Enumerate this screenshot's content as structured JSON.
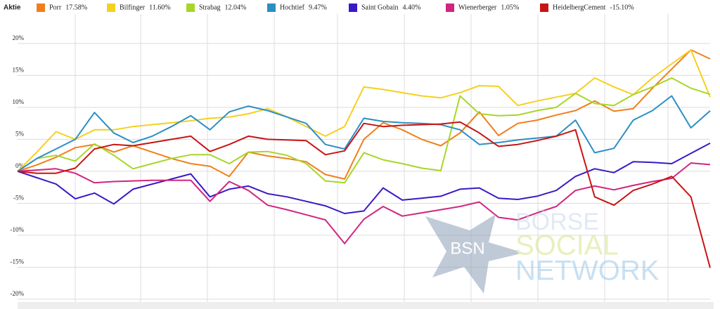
{
  "chart_data": {
    "type": "line",
    "legend_title": "Aktie",
    "categories": [
      null,
      null,
      null,
      null,
      null,
      null,
      null,
      null,
      null,
      null,
      null,
      null,
      null,
      null,
      null,
      null,
      null,
      null,
      null,
      null,
      null,
      null,
      null,
      null,
      null,
      null,
      null,
      null,
      null,
      null,
      null,
      null,
      null,
      null,
      null,
      null,
      null
    ],
    "ylim": [
      -20,
      24.6
    ],
    "yticks": [
      {
        "value": -20,
        "label": "-20%"
      },
      {
        "value": -15,
        "label": "-15%"
      },
      {
        "value": -10,
        "label": "-10%"
      },
      {
        "value": -5,
        "label": "-5%"
      },
      {
        "value": 0,
        "label": "0%"
      },
      {
        "value": 5,
        "label": "5%"
      },
      {
        "value": 10,
        "label": "10%"
      },
      {
        "value": 15,
        "label": "15%"
      },
      {
        "value": 20,
        "label": "20%"
      }
    ],
    "grid": true,
    "series": [
      {
        "name": "Porr",
        "change_label": "17.58%",
        "color": "#f07f1b",
        "values": [
          0,
          1,
          2.2,
          3.7,
          4.2,
          3,
          4,
          3,
          2,
          1.2,
          0.8,
          -0.8,
          3,
          2.4,
          2,
          1.5,
          -0.5,
          -1.2,
          5,
          7.6,
          6.5,
          5,
          4,
          6,
          9.3,
          5.6,
          7.5,
          8,
          8.8,
          9.5,
          11,
          9.4,
          9.8,
          13,
          16,
          19,
          17.58
        ]
      },
      {
        "name": "Bilfinger",
        "change_label": "11.60%",
        "color": "#f5d020",
        "values": [
          0,
          3,
          6.2,
          5,
          6.5,
          6.5,
          7,
          7.3,
          7.6,
          7.9,
          8.3,
          8.5,
          9,
          9.8,
          8.5,
          7,
          5.5,
          7,
          13.2,
          12.8,
          12.3,
          11.8,
          11.5,
          12.3,
          13.4,
          13.3,
          10.3,
          11,
          11.6,
          12.2,
          14.6,
          13.2,
          12,
          14.6,
          16.8,
          19,
          11.6
        ]
      },
      {
        "name": "Strabag",
        "change_label": "12.04%",
        "color": "#a8d628",
        "values": [
          0,
          2,
          2.5,
          1.6,
          4.3,
          2.5,
          0.4,
          1.2,
          2,
          2.6,
          2.6,
          1.2,
          3,
          3.1,
          2.5,
          1.2,
          -1.5,
          -1.8,
          2.9,
          1.8,
          1.2,
          0.5,
          0.1,
          11.8,
          9,
          8.7,
          8.8,
          9.5,
          10,
          12.2,
          10.6,
          10.3,
          12,
          13.2,
          14.6,
          13,
          12.04
        ]
      },
      {
        "name": "Hochtief",
        "change_label": "9.47%",
        "color": "#2b8fc5",
        "values": [
          0,
          2,
          3.5,
          5,
          9.2,
          6,
          4.5,
          5.5,
          7,
          8.7,
          6.5,
          9.3,
          10.2,
          9.5,
          8.5,
          7.5,
          4.2,
          3.5,
          8.3,
          7.8,
          7.6,
          7.5,
          7.3,
          6.5,
          4.2,
          4.5,
          4.9,
          5.2,
          5.5,
          8,
          2.9,
          3.6,
          8,
          9.5,
          11.8,
          6.8,
          9.47
        ]
      },
      {
        "name": "Saint Gobain",
        "change_label": "4.40%",
        "color": "#3b19c6",
        "values": [
          0,
          -1,
          -2,
          -4.3,
          -3.4,
          -5.1,
          -2.8,
          -2,
          -1.2,
          -0.4,
          -4,
          -2.8,
          -2.3,
          -3.5,
          -4,
          -4.7,
          -5.4,
          -6.6,
          -6.2,
          -2.6,
          -4.5,
          -4.2,
          -3.9,
          -2.8,
          -2.6,
          -4.2,
          -4.4,
          -3.9,
          -3,
          -0.8,
          0.4,
          -0.2,
          1.5,
          1.4,
          1.2,
          2.8,
          4.4
        ]
      },
      {
        "name": "Wienerberger",
        "change_label": "1.05%",
        "color": "#d0267f",
        "values": [
          0,
          0.2,
          0.4,
          -0.3,
          -1.8,
          -1.6,
          -1.5,
          -1.4,
          -1.4,
          -1.4,
          -4.7,
          -1.6,
          -3,
          -5.3,
          -6,
          -6.8,
          -7.6,
          -11.3,
          -7.5,
          -5.5,
          -7,
          -6.5,
          -6,
          -5.5,
          -4.8,
          -7.2,
          -7.6,
          -6.5,
          -5.5,
          -3,
          -2.3,
          -2.9,
          -2.2,
          -1.6,
          -1.1,
          1.3,
          1.05
        ]
      },
      {
        "name": "HeidelbergCement",
        "change_label": "-15.10%",
        "color": "#c81414",
        "values": [
          0,
          -0.3,
          -0.3,
          0.5,
          3.5,
          4.2,
          4,
          4.5,
          5,
          5.5,
          3.1,
          4.2,
          5.5,
          5,
          4.9,
          4.8,
          2.6,
          3.2,
          7.5,
          7,
          7.2,
          7.3,
          7.4,
          7.7,
          6,
          3.9,
          4.2,
          4.8,
          5.5,
          6.5,
          -4,
          -5.3,
          -3,
          -2,
          -0.8,
          -4,
          -15.1
        ]
      }
    ],
    "watermark": {
      "logo": "BSN",
      "lines": [
        "BÖRSE",
        "SOCIAL",
        "NETWORK"
      ]
    }
  }
}
